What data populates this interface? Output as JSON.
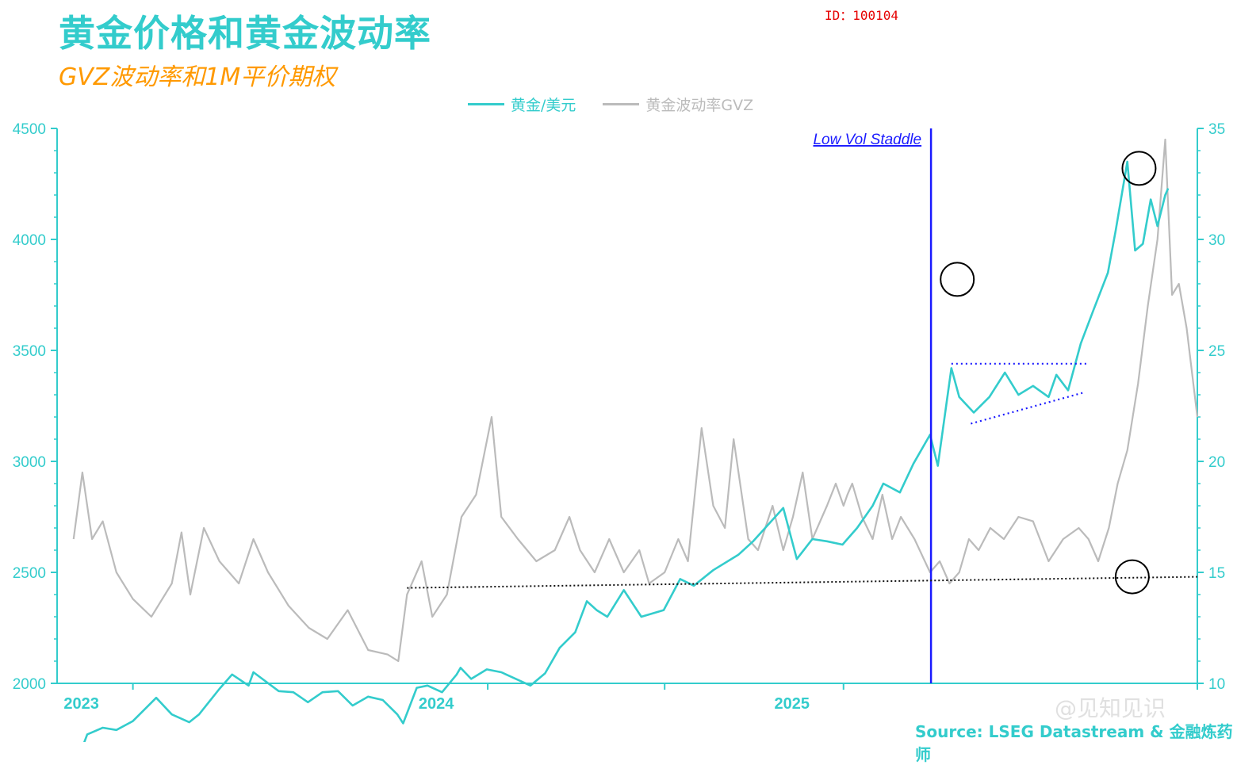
{
  "header": {
    "title": "黄金价格和黄金波动率",
    "subtitle": "GVZ波动率和1M平价期权",
    "id_tag": "ID：100104"
  },
  "footer": {
    "source": "Source: LSEG Datastream & 金融炼药师",
    "watermark": "@见知见识"
  },
  "colors": {
    "gold": "#33cccc",
    "gvz": "#bbbbbb",
    "annotation_blue": "#1a1aff",
    "circle": "#000000",
    "axis": "#33cccc"
  },
  "chart_data": {
    "type": "line",
    "title": "黄金价格和黄金波动率",
    "legend_position": "top-center",
    "grid": false,
    "x_axis": {
      "range": [
        "2022-10-15",
        "2025-12-31"
      ],
      "tick_labels": [
        "2023",
        "2024",
        "2025"
      ],
      "tick_dates": [
        "2023-01-01",
        "2024-01-01",
        "2024-07-01",
        "2025-01-01",
        "2025-12-31"
      ],
      "label_dates": [
        "2023-01-01",
        "2024-01-01",
        "2025-01-01"
      ]
    },
    "y_left": {
      "range": [
        2000,
        4500
      ],
      "ticks": [
        2000,
        2500,
        3000,
        3500,
        4000,
        4500
      ]
    },
    "y_right": {
      "range": [
        10,
        35
      ],
      "ticks": [
        10,
        15,
        20,
        25,
        30,
        35
      ]
    },
    "series": [
      {
        "name": "黄金/美元",
        "axis": "left",
        "points": [
          [
            "2022-11-03",
            1630
          ],
          [
            "2022-11-15",
            1770
          ],
          [
            "2022-12-01",
            1800
          ],
          [
            "2022-12-15",
            1790
          ],
          [
            "2023-01-01",
            1830
          ],
          [
            "2023-01-25",
            1935
          ],
          [
            "2023-02-10",
            1860
          ],
          [
            "2023-02-28",
            1825
          ],
          [
            "2023-03-10",
            1860
          ],
          [
            "2023-03-31",
            1975
          ],
          [
            "2023-04-13",
            2040
          ],
          [
            "2023-04-30",
            1990
          ],
          [
            "2023-05-05",
            2050
          ],
          [
            "2023-05-31",
            1965
          ],
          [
            "2023-06-15",
            1960
          ],
          [
            "2023-06-30",
            1915
          ],
          [
            "2023-07-15",
            1960
          ],
          [
            "2023-07-31",
            1965
          ],
          [
            "2023-08-15",
            1900
          ],
          [
            "2023-08-31",
            1940
          ],
          [
            "2023-09-15",
            1925
          ],
          [
            "2023-09-30",
            1860
          ],
          [
            "2023-10-06",
            1820
          ],
          [
            "2023-10-20",
            1980
          ],
          [
            "2023-10-31",
            1990
          ],
          [
            "2023-11-15",
            1960
          ],
          [
            "2023-11-30",
            2040
          ],
          [
            "2023-12-04",
            2070
          ],
          [
            "2023-12-15",
            2020
          ],
          [
            "2023-12-31",
            2063
          ],
          [
            "2024-01-15",
            2050
          ],
          [
            "2024-02-14",
            1990
          ],
          [
            "2024-02-29",
            2045
          ],
          [
            "2024-03-15",
            2160
          ],
          [
            "2024-03-31",
            2230
          ],
          [
            "2024-04-12",
            2370
          ],
          [
            "2024-04-22",
            2330
          ],
          [
            "2024-05-03",
            2300
          ],
          [
            "2024-05-20",
            2420
          ],
          [
            "2024-06-07",
            2300
          ],
          [
            "2024-06-30",
            2330
          ],
          [
            "2024-07-17",
            2470
          ],
          [
            "2024-07-31",
            2440
          ],
          [
            "2024-08-20",
            2510
          ],
          [
            "2024-09-15",
            2580
          ],
          [
            "2024-09-30",
            2640
          ],
          [
            "2024-10-31",
            2790
          ],
          [
            "2024-11-14",
            2560
          ],
          [
            "2024-11-30",
            2650
          ],
          [
            "2024-12-15",
            2640
          ],
          [
            "2024-12-31",
            2625
          ],
          [
            "2025-01-15",
            2700
          ],
          [
            "2025-01-31",
            2800
          ],
          [
            "2025-02-11",
            2900
          ],
          [
            "2025-02-28",
            2860
          ],
          [
            "2025-03-14",
            2990
          ],
          [
            "2025-03-31",
            3120
          ],
          [
            "2025-04-08",
            2980
          ],
          [
            "2025-04-22",
            3420
          ],
          [
            "2025-04-30",
            3290
          ],
          [
            "2025-05-15",
            3220
          ],
          [
            "2025-05-31",
            3290
          ],
          [
            "2025-06-16",
            3400
          ],
          [
            "2025-06-30",
            3300
          ],
          [
            "2025-07-15",
            3340
          ],
          [
            "2025-07-31",
            3290
          ],
          [
            "2025-08-08",
            3390
          ],
          [
            "2025-08-20",
            3320
          ],
          [
            "2025-09-02",
            3530
          ],
          [
            "2025-09-15",
            3680
          ],
          [
            "2025-09-30",
            3850
          ],
          [
            "2025-10-08",
            4040
          ],
          [
            "2025-10-20",
            4350
          ],
          [
            "2025-10-28",
            3950
          ],
          [
            "2025-11-05",
            3980
          ],
          [
            "2025-11-13",
            4180
          ],
          [
            "2025-11-20",
            4060
          ],
          [
            "2025-11-28",
            4200
          ],
          [
            "2025-12-01",
            4230
          ]
        ]
      },
      {
        "name": "黄金波动率GVZ",
        "axis": "right",
        "points": [
          [
            "2022-11-01",
            16.5
          ],
          [
            "2022-11-10",
            19.5
          ],
          [
            "2022-11-20",
            16.5
          ],
          [
            "2022-12-01",
            17.3
          ],
          [
            "2022-12-15",
            15.0
          ],
          [
            "2023-01-01",
            13.8
          ],
          [
            "2023-01-20",
            13.0
          ],
          [
            "2023-02-10",
            14.5
          ],
          [
            "2023-02-20",
            16.8
          ],
          [
            "2023-03-01",
            14.0
          ],
          [
            "2023-03-15",
            17.0
          ],
          [
            "2023-03-31",
            15.5
          ],
          [
            "2023-04-20",
            14.5
          ],
          [
            "2023-05-05",
            16.5
          ],
          [
            "2023-05-20",
            15.0
          ],
          [
            "2023-06-10",
            13.5
          ],
          [
            "2023-07-01",
            12.5
          ],
          [
            "2023-07-20",
            12.0
          ],
          [
            "2023-08-10",
            13.3
          ],
          [
            "2023-08-31",
            11.5
          ],
          [
            "2023-09-20",
            11.3
          ],
          [
            "2023-10-01",
            11.0
          ],
          [
            "2023-10-10",
            14.0
          ],
          [
            "2023-10-25",
            15.5
          ],
          [
            "2023-11-05",
            13.0
          ],
          [
            "2023-11-20",
            14.0
          ],
          [
            "2023-12-05",
            17.5
          ],
          [
            "2023-12-20",
            18.5
          ],
          [
            "2024-01-05",
            22.0
          ],
          [
            "2024-01-15",
            17.5
          ],
          [
            "2024-02-01",
            16.5
          ],
          [
            "2024-02-20",
            15.5
          ],
          [
            "2024-03-10",
            16.0
          ],
          [
            "2024-03-25",
            17.5
          ],
          [
            "2024-04-05",
            16.0
          ],
          [
            "2024-04-20",
            15.0
          ],
          [
            "2024-05-05",
            16.5
          ],
          [
            "2024-05-20",
            15.0
          ],
          [
            "2024-06-05",
            16.0
          ],
          [
            "2024-06-15",
            14.5
          ],
          [
            "2024-07-01",
            15.0
          ],
          [
            "2024-07-15",
            16.5
          ],
          [
            "2024-07-25",
            15.5
          ],
          [
            "2024-08-08",
            21.5
          ],
          [
            "2024-08-20",
            18.0
          ],
          [
            "2024-09-01",
            17.0
          ],
          [
            "2024-09-10",
            21.0
          ],
          [
            "2024-09-25",
            16.5
          ],
          [
            "2024-10-05",
            16.0
          ],
          [
            "2024-10-20",
            18.0
          ],
          [
            "2024-10-31",
            16.0
          ],
          [
            "2024-11-10",
            17.5
          ],
          [
            "2024-11-20",
            19.5
          ],
          [
            "2024-11-30",
            16.5
          ],
          [
            "2024-12-15",
            18.0
          ],
          [
            "2024-12-24",
            19.0
          ],
          [
            "2025-01-01",
            18.0
          ],
          [
            "2025-01-05",
            18.5
          ],
          [
            "2025-01-10",
            19.0
          ],
          [
            "2025-01-20",
            17.5
          ],
          [
            "2025-01-31",
            16.5
          ],
          [
            "2025-02-10",
            18.5
          ],
          [
            "2025-02-20",
            16.5
          ],
          [
            "2025-03-01",
            17.5
          ],
          [
            "2025-03-15",
            16.5
          ],
          [
            "2025-03-31",
            15.0
          ],
          [
            "2025-04-10",
            15.5
          ],
          [
            "2025-04-20",
            14.5
          ],
          [
            "2025-04-30",
            15.0
          ],
          [
            "2025-05-10",
            16.5
          ],
          [
            "2025-05-20",
            16.0
          ],
          [
            "2025-06-01",
            17.0
          ],
          [
            "2025-06-15",
            16.5
          ],
          [
            "2025-06-30",
            17.5
          ],
          [
            "2025-07-15",
            17.3
          ],
          [
            "2025-07-31",
            15.5
          ],
          [
            "2025-08-15",
            16.5
          ],
          [
            "2025-08-31",
            17.0
          ],
          [
            "2025-09-10",
            16.5
          ],
          [
            "2025-09-20",
            15.5
          ],
          [
            "2025-10-01",
            17.0
          ],
          [
            "2025-10-10",
            19.0
          ],
          [
            "2025-10-20",
            20.5
          ],
          [
            "2025-10-31",
            23.5
          ],
          [
            "2025-11-10",
            27.0
          ],
          [
            "2025-11-20",
            30.0
          ],
          [
            "2025-11-28",
            34.5
          ],
          [
            "2025-12-05",
            27.5
          ],
          [
            "2025-12-12",
            28.0
          ],
          [
            "2025-12-20",
            26.0
          ],
          [
            "2025-12-31",
            22.0
          ]
        ]
      }
    ],
    "annotations": {
      "low_vol_label": "Low Vol Staddle",
      "vertical_line_date": "2025-04-01",
      "resistance_line": {
        "from": [
          "2025-04-22",
          3440
        ],
        "to": [
          "2025-09-10",
          3440
        ]
      },
      "rising_support_line": {
        "from": [
          "2025-05-12",
          3170
        ],
        "to": [
          "2025-09-05",
          3310
        ]
      },
      "vol_floor_line": {
        "axis": "right",
        "from": [
          "2023-10-10",
          14.3
        ],
        "to": [
          "2025-12-31",
          14.8
        ]
      },
      "circles": [
        {
          "date": "2025-04-28",
          "value": 3820,
          "axis": "left"
        },
        {
          "date": "2025-11-01",
          "value": 4320,
          "axis": "left"
        },
        {
          "date": "2025-10-25",
          "value": 14.8,
          "axis": "right"
        }
      ]
    }
  }
}
